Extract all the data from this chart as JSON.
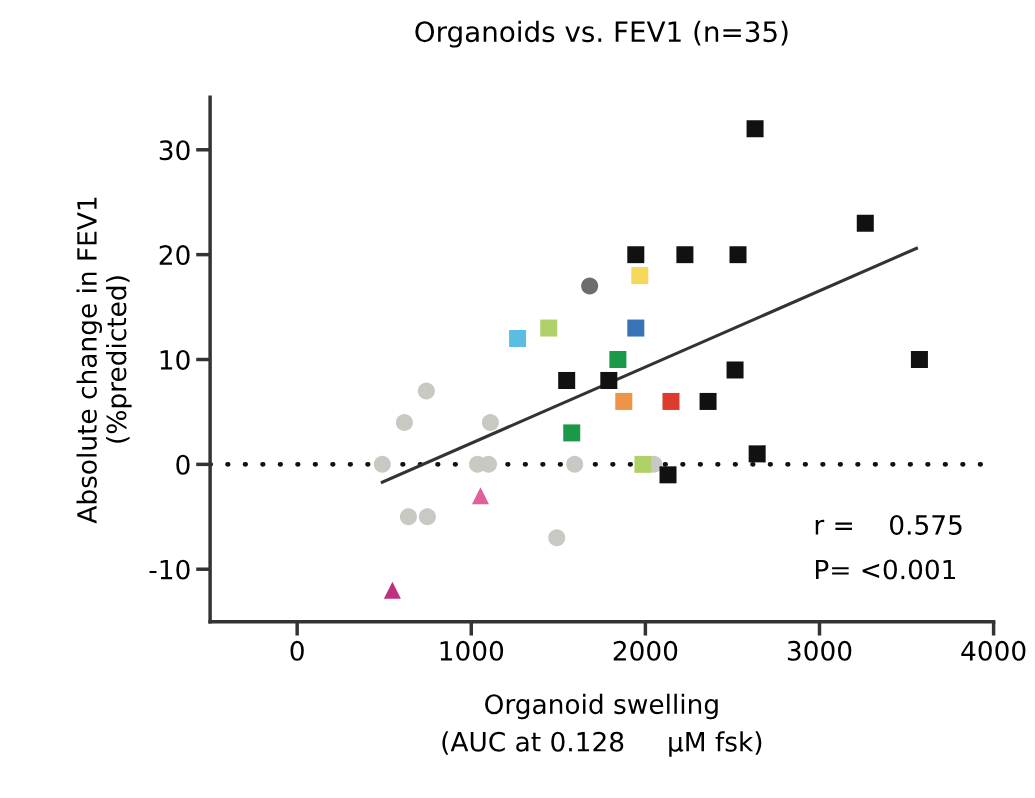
{
  "chart_data": {
    "type": "scatter",
    "title": "Organoids vs. FEV1 (n=35)",
    "xlabel": "Organoid swelling\n(AUC at 0.128     µM fsk)",
    "ylabel": "Absolute change in FEV1\n(%predicted)",
    "xlim": [
      -500,
      4000
    ],
    "xticks": [
      0,
      1000,
      2000,
      3000,
      4000
    ],
    "ylim": [
      -15,
      35
    ],
    "yticks": [
      -10,
      0,
      10,
      20,
      30
    ],
    "grid": false,
    "legend": false,
    "ref_lines": [
      {
        "axis": "y",
        "value": 0,
        "color": "#111111",
        "line_style": "dotted"
      }
    ],
    "annotations": [
      "r =    0.575",
      "P= <0.001"
    ],
    "series": [
      {
        "marker": "circle",
        "color": "#c8c9c3",
        "x": [
          489,
          616,
          742,
          639,
          748,
          1036,
          1099,
          1110,
          1594,
          1491,
          2049
        ],
        "values": [
          0,
          4,
          7,
          -5,
          -5,
          0,
          0,
          4,
          0,
          -7,
          0
        ]
      },
      {
        "marker": "circle",
        "color": "#6b6e6e",
        "x": [
          1680
        ],
        "values": [
          17
        ]
      },
      {
        "marker": "triangle",
        "colors": [
          "#e0609a",
          "#c0307f"
        ],
        "x": [
          1053,
          547
        ],
        "values": [
          -3,
          -12
        ]
      },
      {
        "marker": "square",
        "colors": [
          "#5bbde4",
          "#b0d16a",
          "#1a9a48",
          "#1a9a48",
          "#ee9446",
          "#f5d75a",
          "#3a72b8",
          "#dd3b2d",
          "#b0d16a"
        ],
        "x": [
          1266,
          1445,
          1577,
          1842,
          1876,
          1968,
          1945,
          2147,
          1986
        ],
        "values": [
          12,
          13,
          3,
          10,
          6,
          18,
          13,
          6,
          0
        ]
      },
      {
        "marker": "square",
        "color": "#111111",
        "x": [
          1548,
          1790,
          1945,
          2227,
          2532,
          2630,
          3263,
          3574,
          2515,
          2360,
          2642,
          2130
        ],
        "values": [
          8,
          8,
          20,
          20,
          20,
          32,
          23,
          10,
          9,
          6,
          1,
          -1
        ]
      },
      {
        "type": "line",
        "color": "#333333",
        "line_style": "solid",
        "x": [
          489,
          3557
        ],
        "values": [
          -1.7,
          20.6
        ]
      }
    ]
  }
}
